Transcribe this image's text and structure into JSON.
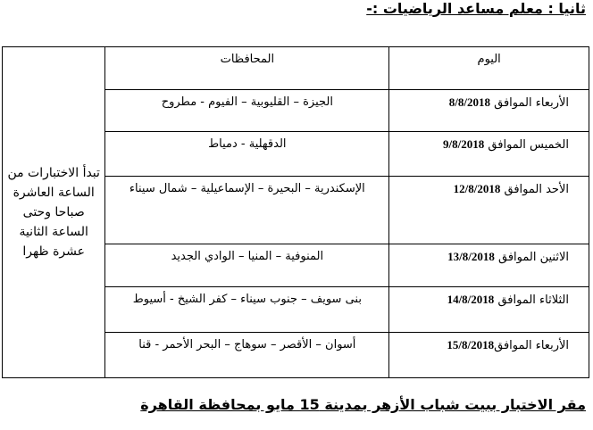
{
  "title": "ثانيا : معلم مساعد الرياضيات :-",
  "table": {
    "headers": {
      "day": "اليوم",
      "governorates": "المحافظات"
    },
    "time_note": "تبدأ الاختبارات من الساعة العاشرة صباحا وحتى الساعة الثانية عشرة ظهرا",
    "rows": [
      {
        "day": "الأربعاء الموافق",
        "date": "8/8/2018",
        "governorates": "الجيزة – القليوبية – الفيوم - مطروح"
      },
      {
        "day": "الخميس الموافق",
        "date": "9/8/2018",
        "governorates": "الدقهلية - دمياط"
      },
      {
        "day": "الأحد الموافق",
        "date": "12/8/2018",
        "governorates": "الإسكندرية – البحيرة – الإسماعيلية – شمال سيناء"
      },
      {
        "day": "الاثنين الموافق",
        "date": "13/8/2018",
        "governorates": "المنوفية – المنيا – الوادي الجديد"
      },
      {
        "day": "الثلاثاء الموافق",
        "date": "14/8/2018",
        "governorates": "بنى سويف – جنوب سيناء – كفر الشيخ - أسيوط"
      },
      {
        "day": "الأربعاء الموافق",
        "date": "15/8/2018",
        "governorates": "أسوان – الأقصر – سوهاج – البحر الأحمر - قنا"
      }
    ]
  },
  "footer": "مقر الاختبار ببيت شباب الأزهر بمدينة 15 مايو بمحافظة القاهرة"
}
